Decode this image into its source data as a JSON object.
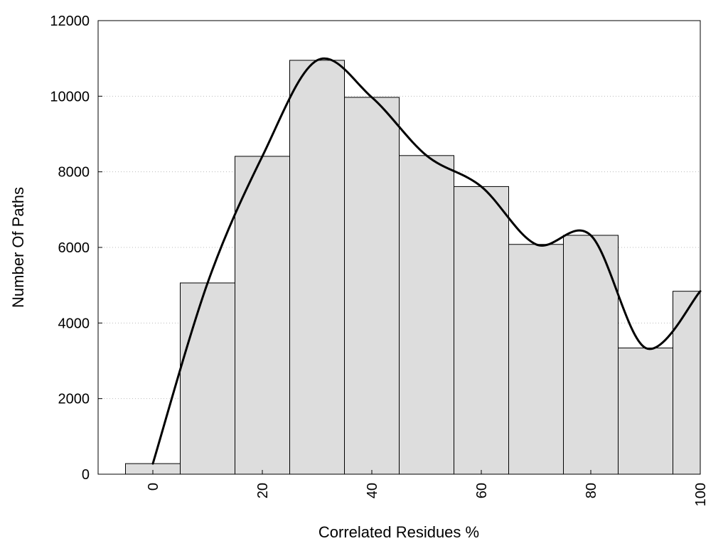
{
  "chart_data": {
    "type": "bar",
    "title": "",
    "xlabel": "Correlated Residues %",
    "ylabel": "Number Of Paths",
    "x": [
      0,
      10,
      20,
      30,
      40,
      50,
      60,
      70,
      80,
      90,
      100
    ],
    "values": [
      280,
      5060,
      8410,
      10950,
      9970,
      8430,
      7610,
      6080,
      6320,
      3340,
      4840
    ],
    "bin_width": 10,
    "xlim": [
      -10,
      100
    ],
    "ylim": [
      0,
      12000
    ],
    "x_ticks": [
      0,
      20,
      40,
      60,
      80,
      100
    ],
    "y_ticks": [
      0,
      2000,
      4000,
      6000,
      8000,
      10000,
      12000
    ],
    "x_tick_labels": [
      "0",
      "20",
      "40",
      "60",
      "80",
      "100"
    ],
    "y_tick_labels": [
      "0",
      "2000",
      "4000",
      "6000",
      "8000",
      "10000",
      "12000"
    ],
    "grid": "horizontal dotted",
    "bar_color": "#dddddd",
    "bar_edge_color": "#000000",
    "curve_color": "#000000",
    "curve_points": [
      {
        "x": 0,
        "y": 280
      },
      {
        "x": 10,
        "y": 5060
      },
      {
        "x": 20,
        "y": 8410
      },
      {
        "x": 30,
        "y": 10950
      },
      {
        "x": 40,
        "y": 9970
      },
      {
        "x": 50,
        "y": 8430
      },
      {
        "x": 60,
        "y": 7610
      },
      {
        "x": 70,
        "y": 6080
      },
      {
        "x": 80,
        "y": 6320
      },
      {
        "x": 90,
        "y": 3340
      },
      {
        "x": 100,
        "y": 4840
      }
    ]
  }
}
